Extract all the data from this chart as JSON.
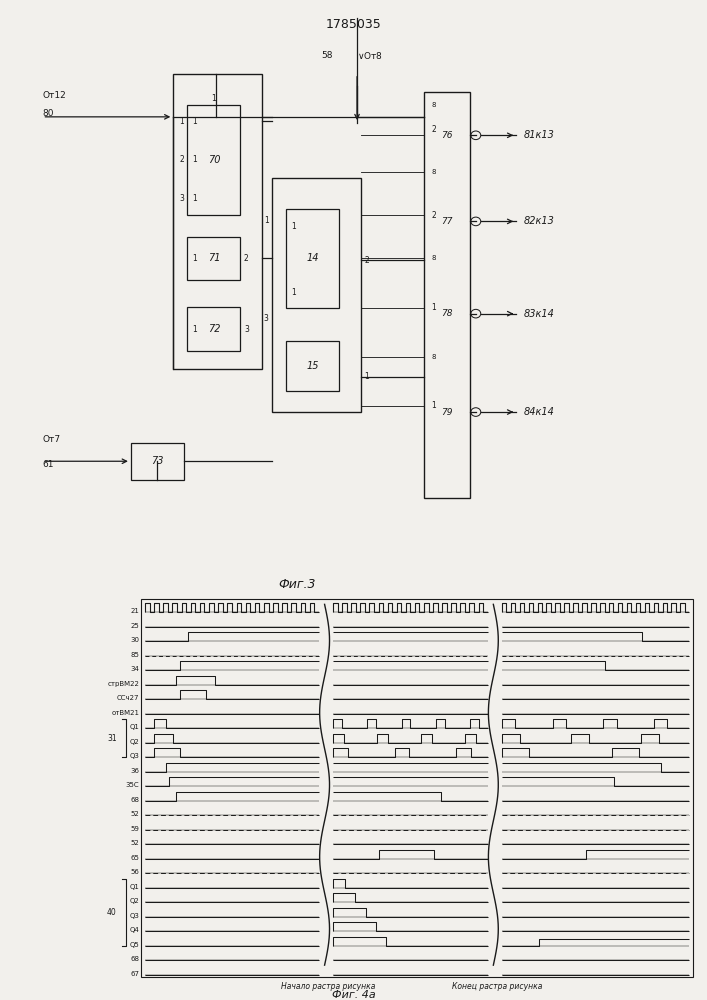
{
  "title": "1785035",
  "fig3_label": "Фиг.3",
  "fig4a_label": "Фиг. 4а",
  "background_color": "#f2f0ec",
  "line_color": "#1a1a1a",
  "fig3_area": [
    0.0,
    0.385,
    1.0,
    0.615
  ],
  "fig4a_area": [
    0.0,
    0.0,
    1.0,
    0.41
  ],
  "row_labels": [
    "21",
    "25",
    "30",
    "85",
    "34",
    "стрВМ22",
    "ССч27",
    "отВМ21",
    "Q1",
    "Q2",
    "Q3",
    "36",
    "35С",
    "68",
    "52",
    "59",
    "52",
    "65",
    "56",
    "Q1",
    "Q2",
    "Q3",
    "Q4",
    "Q5",
    "68",
    "67"
  ],
  "group_labels": [
    {
      "label": "31",
      "rows": [
        8,
        9,
        10
      ]
    },
    {
      "label": "40",
      "rows": [
        19,
        20,
        21,
        22,
        23
      ]
    }
  ]
}
